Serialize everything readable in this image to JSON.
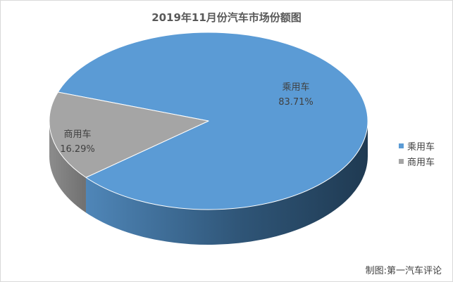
{
  "chart_data": {
    "type": "pie",
    "title": "2019年11月份汽车市场份额图",
    "slices": [
      {
        "name": "乘用车",
        "value": 83.71,
        "label": "83.71%",
        "color": "#5b9bd5",
        "side_color": "#3d6f9a"
      },
      {
        "name": "商用车",
        "value": 16.29,
        "label": "16.29%",
        "color": "#a5a5a5",
        "side_color": "#7b7b7b"
      }
    ],
    "legend_position": "right",
    "legend": [
      "乘用车",
      "商用车"
    ],
    "style": "3d"
  },
  "source_note": "制图:第一汽车评论"
}
